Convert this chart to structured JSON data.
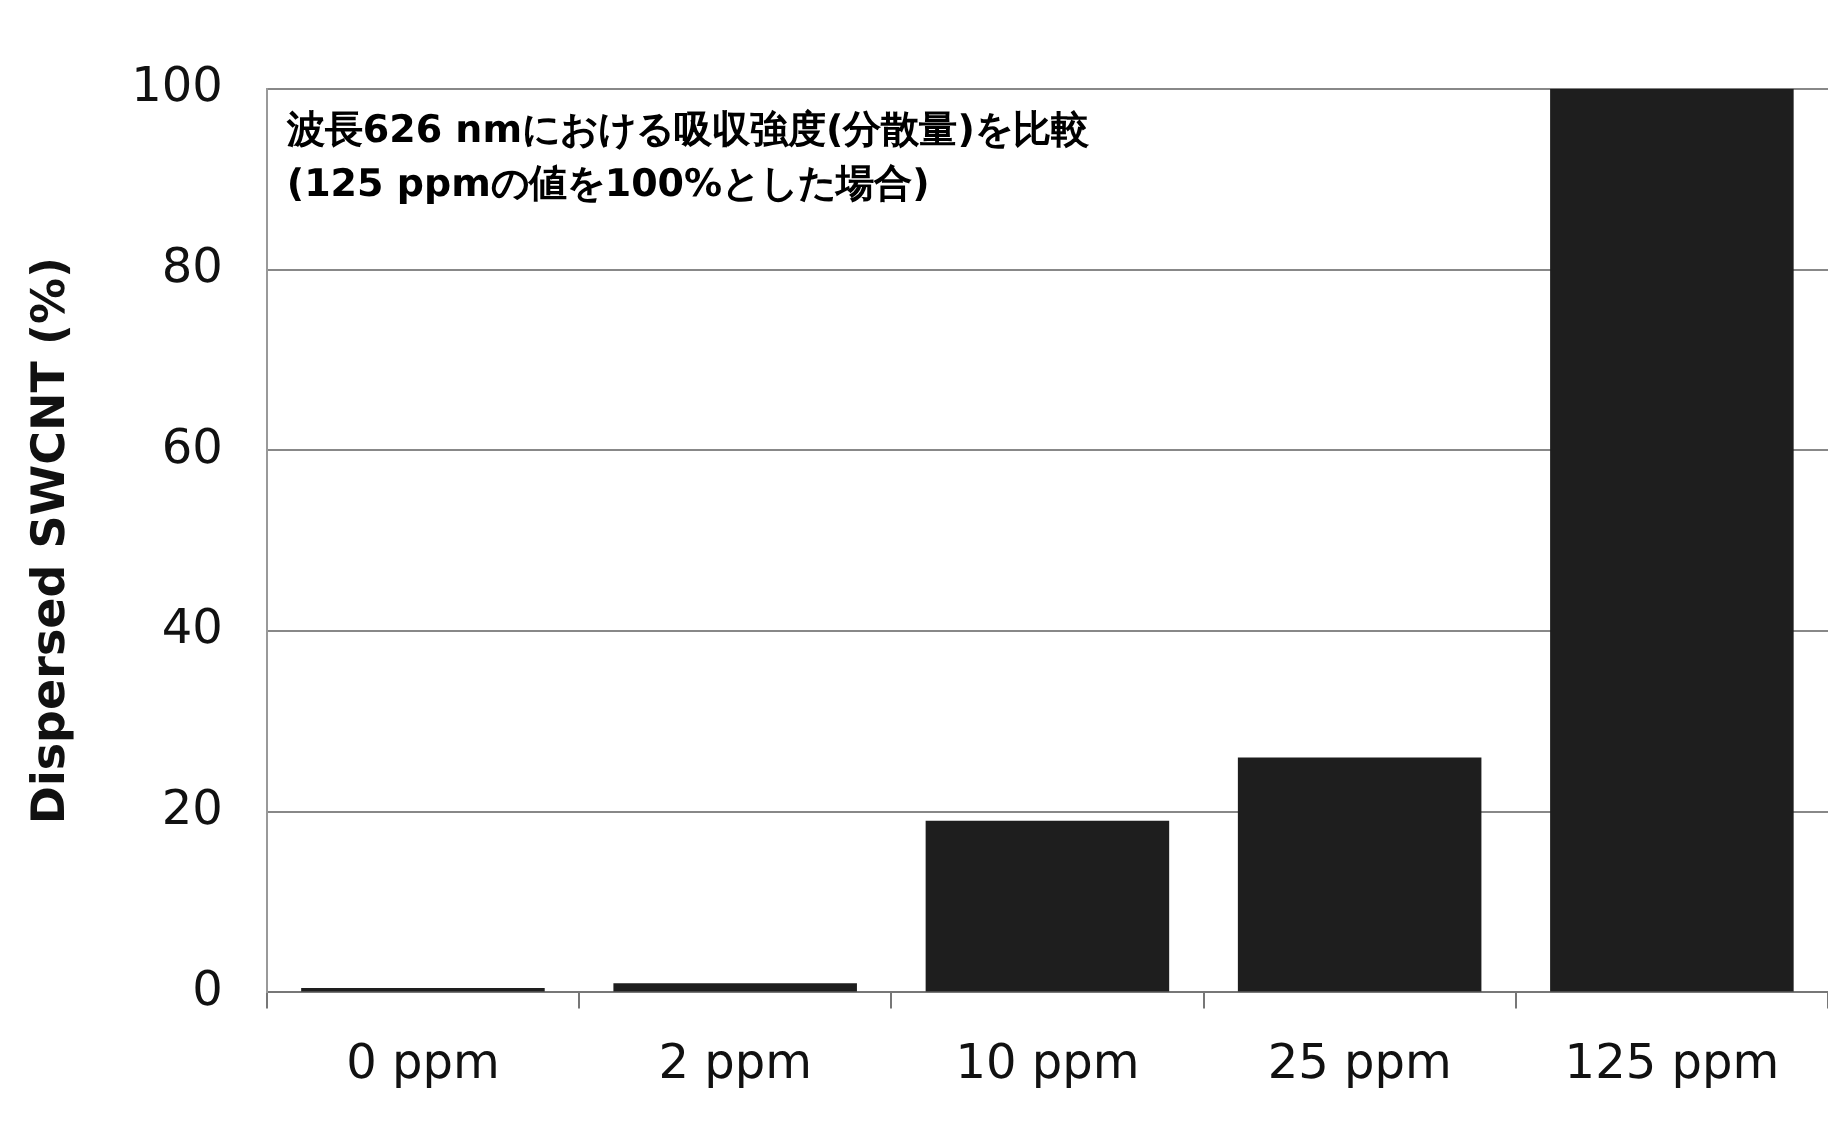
{
  "chart_data": {
    "type": "bar",
    "ylabel": "Dispersed SWCNT (%)",
    "categories": [
      "0 ppm",
      "2 ppm",
      "10 ppm",
      "25 ppm",
      "125 ppm"
    ],
    "values": [
      0.5,
      1,
      19,
      26,
      100
    ],
    "color": "#1e1e1e",
    "ylim": [
      0,
      100
    ],
    "yticks": [
      0,
      20,
      40,
      60,
      80,
      100
    ],
    "grid": "y",
    "annotations": [
      "波長626 nmにおける吸収強度(分散量)を比較",
      "(125 ppmの値を100%とした場合)"
    ]
  }
}
